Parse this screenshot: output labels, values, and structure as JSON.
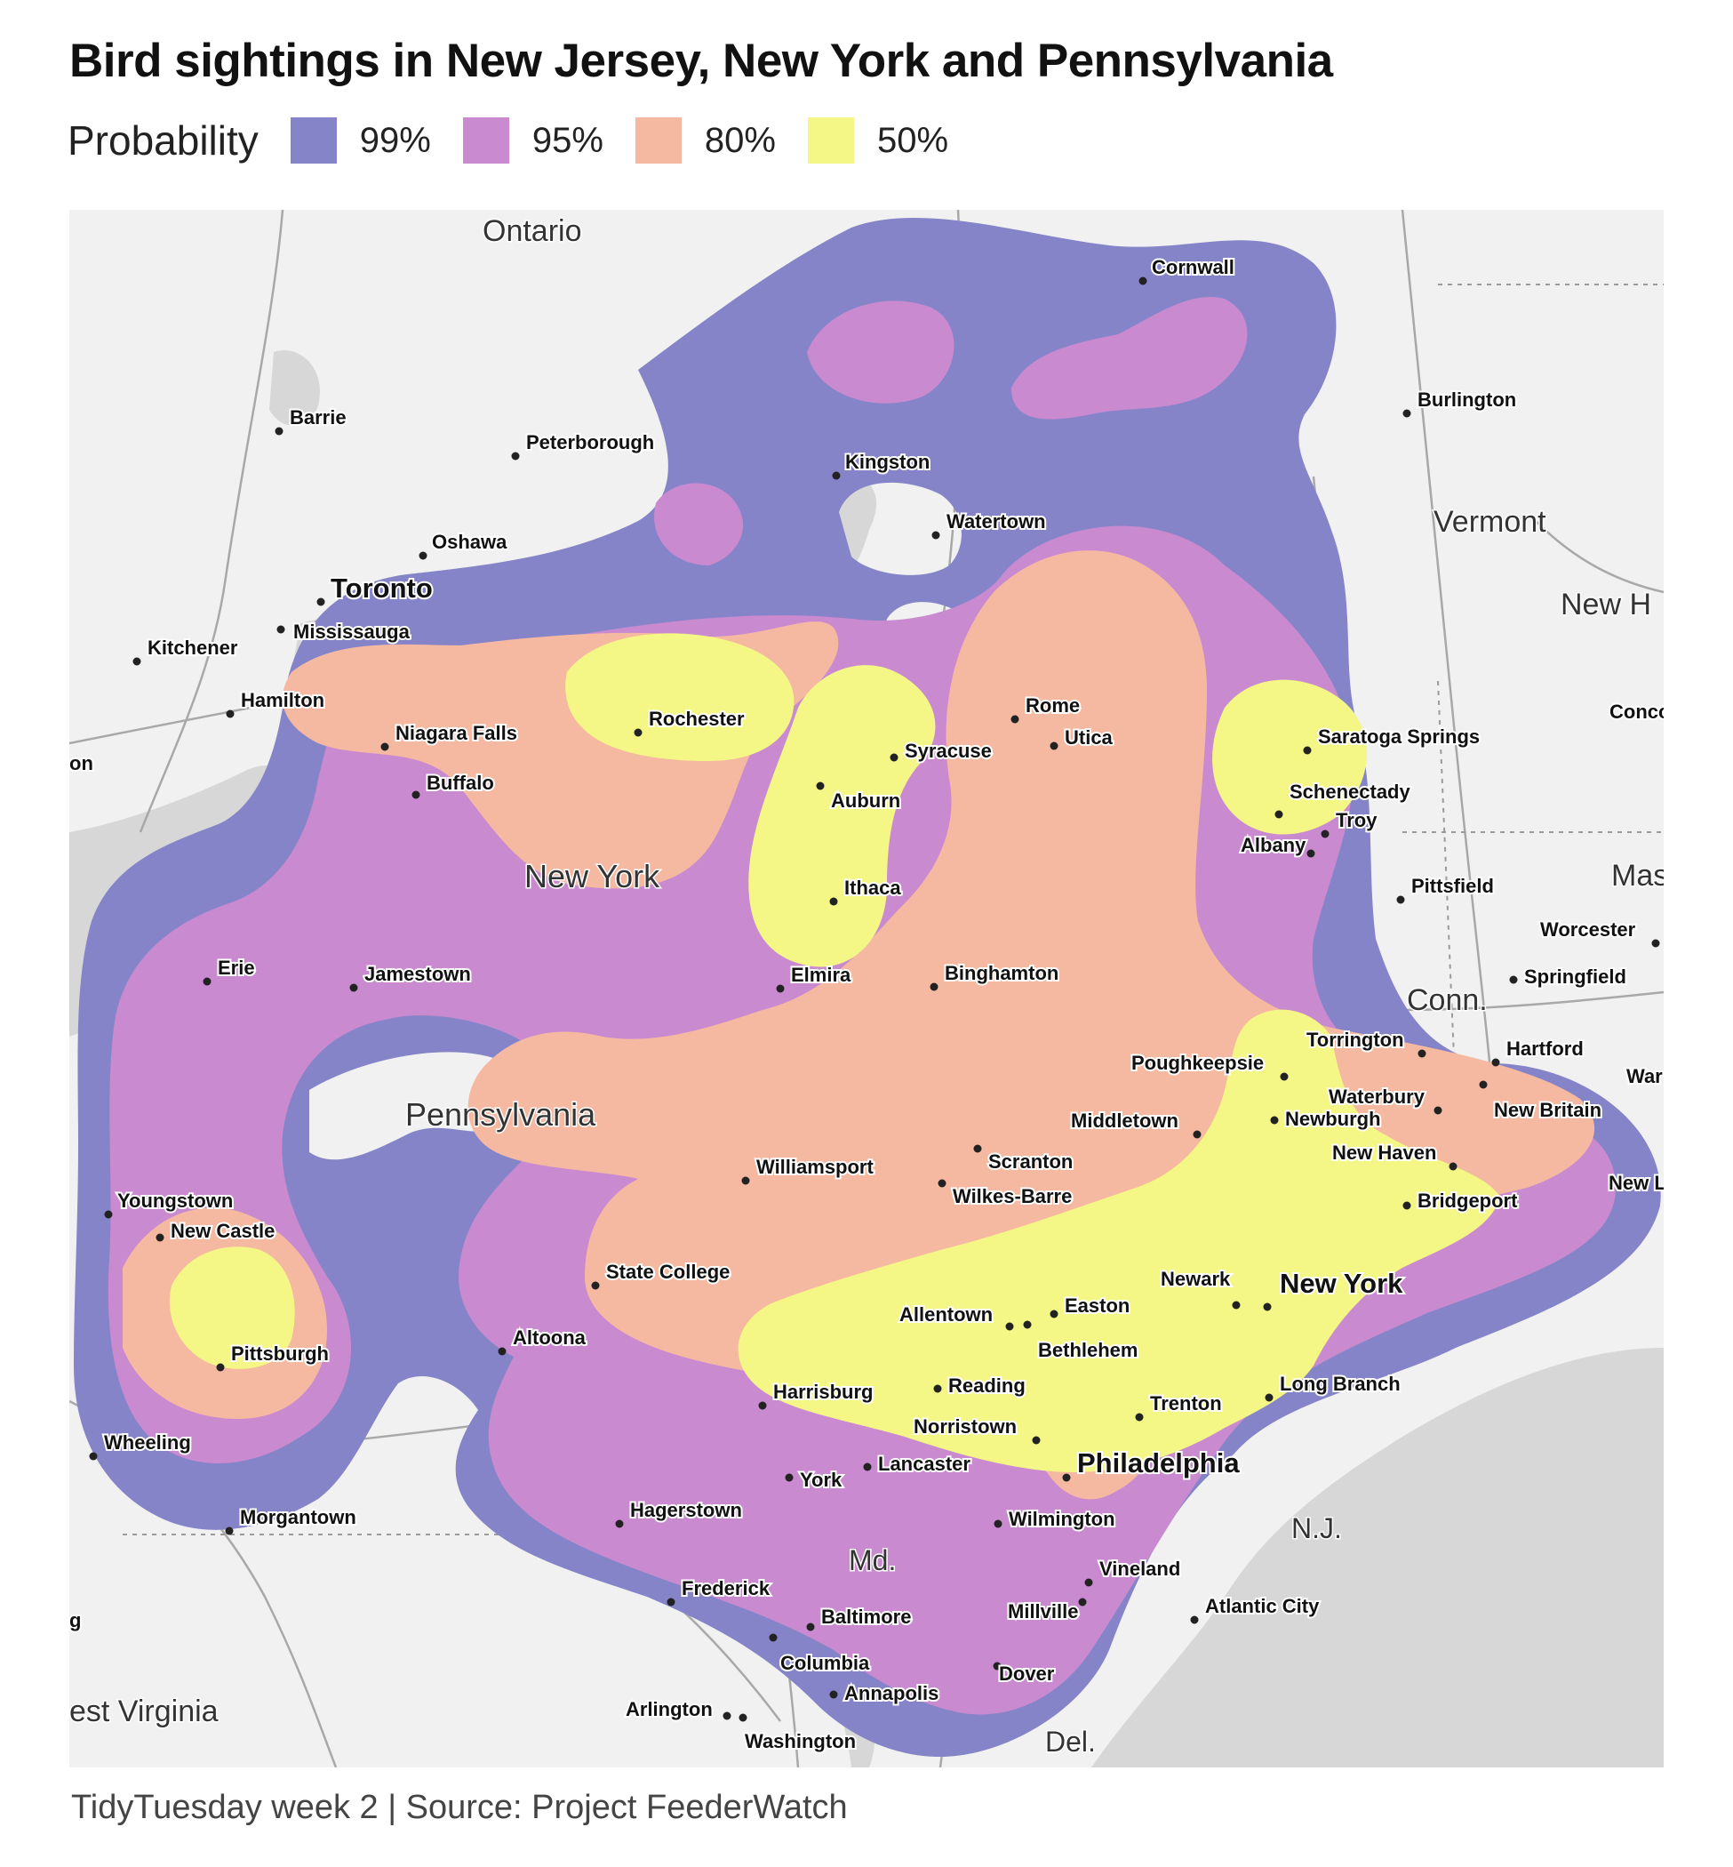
{
  "title": "Bird sightings in New Jersey, New York and Pennsylvania",
  "legend": {
    "title": "Probability",
    "items": [
      {
        "label": "99%",
        "color": "#8584c8"
      },
      {
        "label": "95%",
        "color": "#c98ad0"
      },
      {
        "label": "80%",
        "color": "#f5b9a1"
      },
      {
        "label": "50%",
        "color": "#f4f786"
      }
    ]
  },
  "caption": "TidyTuesday week 2 | Source: Project FeederWatch",
  "map": {
    "water_color": "#d7d7d7",
    "land_color": "#f1f1f1",
    "regions": [
      "Ontario",
      "Vermont",
      "New H",
      "Mas",
      "Conn.",
      "New York",
      "Pennsylvania",
      "N.J.",
      "Md.",
      "Del.",
      "est Virginia"
    ],
    "places": [
      "Cornwall",
      "Barrie",
      "Peterborough",
      "Kingston",
      "Burlington",
      "Watertown",
      "Oshawa",
      "Toronto",
      "Mississauga",
      "Kitchener",
      "Hamilton",
      "Rome",
      "Utica",
      "Rochester",
      "Syracuse",
      "Niagara Falls",
      "Buffalo",
      "Auburn",
      "Saratoga Springs",
      "Schenectady",
      "Troy",
      "Albany",
      "Pittsfield",
      "Ithaca",
      "Worcester",
      "Springfield",
      "Erie",
      "Jamestown",
      "Elmira",
      "Binghamton",
      "Torrington",
      "Hartford",
      "Poughkeepsie",
      "Waterbury",
      "New Britain",
      "Middletown",
      "Newburgh",
      "Scranton",
      "New Haven",
      "Williamsport",
      "Wilkes-Barre",
      "Youngstown",
      "Bridgeport",
      "New Castle",
      "State College",
      "Newark",
      "New York",
      "Allentown",
      "Easton",
      "Bethlehem",
      "Altoona",
      "Pittsburgh",
      "Harrisburg",
      "Reading",
      "Long Branch",
      "Trenton",
      "Norristown",
      "Wheeling",
      "Lancaster",
      "Philadelphia",
      "York",
      "Wilmington",
      "Morgantown",
      "Hagerstown",
      "Vineland",
      "Frederick",
      "Atlantic City",
      "Millville",
      "Baltimore",
      "Columbia",
      "Annapolis",
      "Dover",
      "Arlington",
      "Washington",
      "Concc",
      "War",
      "New L",
      "on",
      "g"
    ]
  }
}
